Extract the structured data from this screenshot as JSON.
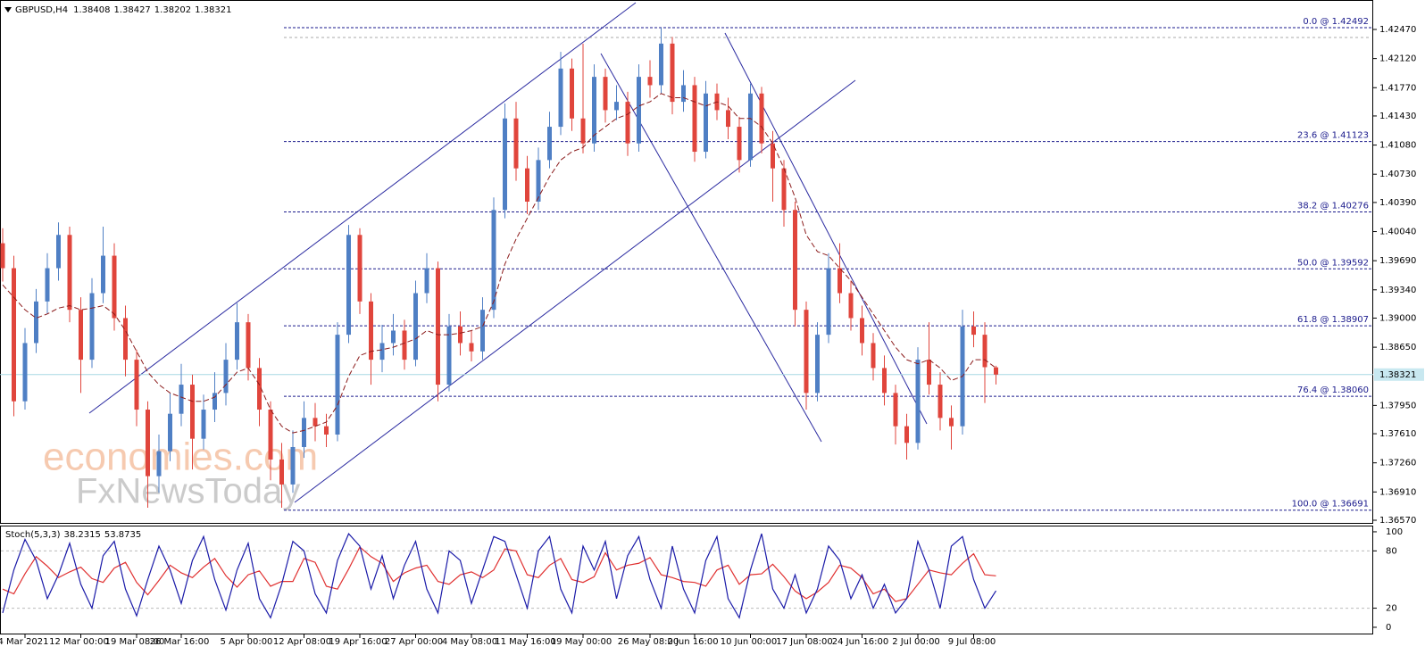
{
  "chart_data": [
    {
      "type": "candlestick",
      "title": "GBPUSD,H4",
      "categories": [
        null,
        null,
        "4 Mar 2021",
        null,
        null,
        null,
        null,
        "12 Mar 00:00",
        null,
        null,
        null,
        null,
        "19 Mar 08:00",
        null,
        null,
        null,
        "26 Mar 16:00",
        null,
        null,
        null,
        null,
        null,
        "5 Apr 00:00",
        null,
        null,
        null,
        null,
        "12 Apr 08:00",
        null,
        null,
        null,
        null,
        "19 Apr 16:00",
        null,
        null,
        null,
        null,
        "27 Apr 00:00",
        null,
        null,
        null,
        null,
        "4 May 08:00",
        null,
        null,
        null,
        null,
        "11 May 16:00",
        null,
        null,
        null,
        null,
        "19 May 00:00",
        null,
        null,
        null,
        null,
        null,
        "26 May 08:00",
        null,
        null,
        null,
        "2 Jun 16:00",
        null,
        null,
        null,
        null,
        "10 Jun 00:00",
        null,
        null,
        null,
        null,
        "17 Jun 08:00",
        null,
        null,
        null,
        null,
        "24 Jun 16:00",
        null,
        null,
        null,
        null,
        "2 Jul 00:00",
        null,
        null,
        null,
        null,
        "9 Jul 08:00",
        null,
        null
      ],
      "open": [
        1.399,
        1.396,
        1.38,
        1.387,
        1.392,
        1.396,
        1.4,
        1.391,
        1.385,
        1.393,
        1.3975,
        1.39,
        1.385,
        1.379,
        1.371,
        1.374,
        1.3785,
        1.382,
        1.3755,
        1.379,
        1.381,
        1.385,
        1.3895,
        1.384,
        1.379,
        1.373,
        1.37,
        1.3745,
        1.378,
        1.377,
        1.376,
        1.388,
        1.4,
        1.392,
        1.385,
        1.387,
        1.3885,
        1.385,
        1.393,
        1.396,
        1.382,
        1.389,
        1.387,
        1.386,
        1.391,
        1.403,
        1.414,
        1.408,
        1.404,
        1.409,
        1.413,
        1.42,
        1.414,
        1.411,
        1.419,
        1.415,
        1.416,
        1.411,
        1.419,
        1.418,
        1.423,
        1.416,
        1.418,
        1.41,
        1.417,
        1.415,
        1.413,
        1.409,
        1.417,
        1.411,
        1.408,
        1.403,
        1.391,
        1.381,
        1.388,
        1.396,
        1.393,
        1.39,
        1.387,
        1.384,
        1.381,
        1.377,
        1.375,
        1.385,
        1.382,
        1.378,
        1.377,
        1.389,
        1.388,
        1.38408
      ],
      "high": [
        1.4008,
        1.3975,
        1.3888,
        1.3935,
        1.3978,
        1.4015,
        1.401,
        1.3925,
        1.3948,
        1.401,
        1.399,
        1.3915,
        1.3862,
        1.38,
        1.376,
        1.381,
        1.3845,
        1.3832,
        1.3808,
        1.3835,
        1.387,
        1.3918,
        1.3905,
        1.3852,
        1.38,
        1.375,
        1.3765,
        1.38,
        1.3798,
        1.3785,
        1.3895,
        1.4012,
        1.4008,
        1.393,
        1.3892,
        1.3905,
        1.3898,
        1.3945,
        1.3978,
        1.3968,
        1.3905,
        1.3908,
        1.3885,
        1.3925,
        1.4045,
        1.4158,
        1.416,
        1.4095,
        1.4105,
        1.4148,
        1.422,
        1.4212,
        1.423,
        1.4205,
        1.42,
        1.418,
        1.4172,
        1.4205,
        1.421,
        1.4249,
        1.4238,
        1.4198,
        1.419,
        1.4185,
        1.4182,
        1.4165,
        1.4142,
        1.4182,
        1.4178,
        1.4125,
        1.409,
        1.404,
        1.392,
        1.3895,
        1.3978,
        1.399,
        1.3945,
        1.3915,
        1.3882,
        1.3855,
        1.382,
        1.3785,
        1.3865,
        1.3895,
        1.3835,
        1.3795,
        1.391,
        1.3908,
        1.3895,
        1.38427
      ],
      "low": [
        1.3944,
        1.3782,
        1.379,
        1.3858,
        1.3905,
        1.3945,
        1.3895,
        1.381,
        1.384,
        1.3918,
        1.3885,
        1.383,
        1.377,
        1.3672,
        1.369,
        1.3728,
        1.377,
        1.3718,
        1.3742,
        1.3775,
        1.3795,
        1.3838,
        1.3825,
        1.377,
        1.3705,
        1.3672,
        1.369,
        1.3732,
        1.3752,
        1.3745,
        1.3752,
        1.387,
        1.3905,
        1.382,
        1.3835,
        1.3855,
        1.3838,
        1.3842,
        1.3918,
        1.38,
        1.3812,
        1.3855,
        1.3848,
        1.385,
        1.39,
        1.402,
        1.4065,
        1.4025,
        1.403,
        1.408,
        1.412,
        1.4125,
        1.4098,
        1.41,
        1.4135,
        1.4138,
        1.4095,
        1.41,
        1.4165,
        1.417,
        1.4145,
        1.4148,
        1.4088,
        1.4092,
        1.4138,
        1.4115,
        1.4075,
        1.4082,
        1.4098,
        1.404,
        1.401,
        1.389,
        1.379,
        1.38,
        1.387,
        1.3918,
        1.3885,
        1.3855,
        1.3825,
        1.3795,
        1.3748,
        1.373,
        1.3742,
        1.3808,
        1.3765,
        1.3742,
        1.376,
        1.3865,
        1.3798,
        1.38202
      ],
      "close": [
        1.396,
        1.38,
        1.387,
        1.392,
        1.396,
        1.4,
        1.391,
        1.385,
        1.393,
        1.3975,
        1.39,
        1.385,
        1.379,
        1.371,
        1.374,
        1.3785,
        1.382,
        1.3755,
        1.379,
        1.381,
        1.385,
        1.3895,
        1.384,
        1.379,
        1.373,
        1.37,
        1.3745,
        1.378,
        1.377,
        1.376,
        1.388,
        1.4,
        1.392,
        1.385,
        1.387,
        1.3885,
        1.385,
        1.393,
        1.396,
        1.382,
        1.389,
        1.387,
        1.386,
        1.391,
        1.403,
        1.414,
        1.408,
        1.404,
        1.409,
        1.413,
        1.42,
        1.414,
        1.411,
        1.419,
        1.415,
        1.416,
        1.411,
        1.419,
        1.418,
        1.423,
        1.416,
        1.418,
        1.41,
        1.417,
        1.415,
        1.413,
        1.409,
        1.417,
        1.411,
        1.408,
        1.403,
        1.391,
        1.381,
        1.388,
        1.396,
        1.393,
        1.39,
        1.387,
        1.384,
        1.381,
        1.377,
        1.375,
        1.385,
        1.382,
        1.378,
        1.377,
        1.389,
        1.388,
        1.3841,
        1.38321
      ],
      "up_color": "#4f7fc4",
      "down_color": "#e0453c",
      "ma": {
        "color": "#8b1a1a",
        "values": [
          1.394,
          1.3925,
          1.391,
          1.39,
          1.3905,
          1.3912,
          1.3915,
          1.391,
          1.3912,
          1.3915,
          1.3905,
          1.3885,
          1.386,
          1.3835,
          1.382,
          1.381,
          1.3805,
          1.38,
          1.38,
          1.3805,
          1.382,
          1.3835,
          1.384,
          1.382,
          1.379,
          1.377,
          1.3762,
          1.3765,
          1.377,
          1.3775,
          1.3795,
          1.383,
          1.3855,
          1.386,
          1.3862,
          1.3865,
          1.387,
          1.3875,
          1.3885,
          1.388,
          1.388,
          1.3882,
          1.3885,
          1.389,
          1.392,
          1.3965,
          1.3995,
          1.402,
          1.4045,
          1.407,
          1.409,
          1.41,
          1.4105,
          1.412,
          1.413,
          1.414,
          1.4145,
          1.4155,
          1.416,
          1.417,
          1.4165,
          1.4165,
          1.416,
          1.4155,
          1.416,
          1.4155,
          1.414,
          1.414,
          1.413,
          1.411,
          1.408,
          1.4045,
          1.4,
          1.398,
          1.3975,
          1.396,
          1.3945,
          1.3925,
          1.3905,
          1.3885,
          1.3865,
          1.385,
          1.3845,
          1.385,
          1.384,
          1.3825,
          1.383,
          1.385,
          1.385,
          1.384
        ]
      },
      "ylim": [
        1.36538,
        1.42824
      ],
      "yticks": [
        {
          "value": 1.4247,
          "label": "1.42470"
        },
        {
          "value": 1.4212,
          "label": "1.42120"
        },
        {
          "value": 1.4177,
          "label": "1.41770"
        },
        {
          "value": 1.4143,
          "label": "1.41430"
        },
        {
          "value": 1.4108,
          "label": "1.41080"
        },
        {
          "value": 1.4073,
          "label": "1.40730"
        },
        {
          "value": 1.4039,
          "label": "1.40390"
        },
        {
          "value": 1.4004,
          "label": "1.40040"
        },
        {
          "value": 1.3969,
          "label": "1.39690"
        },
        {
          "value": 1.3934,
          "label": "1.39340"
        },
        {
          "value": 1.39,
          "label": "1.39000"
        },
        {
          "value": 1.3865,
          "label": "1.38650"
        },
        {
          "value": 1.3795,
          "label": "1.37950"
        },
        {
          "value": 1.3761,
          "label": "1.37610"
        },
        {
          "value": 1.3726,
          "label": "1.37260"
        },
        {
          "value": 1.3691,
          "label": "1.36910"
        },
        {
          "value": 1.3657,
          "label": "1.36570"
        }
      ],
      "fib": [
        {
          "label": "0.0 @ 1.42492",
          "value": 1.42492
        },
        {
          "label": "23.6 @ 1.41123",
          "value": 1.41123
        },
        {
          "label": "38.2 @ 1.40276",
          "value": 1.40276
        },
        {
          "label": "50.0 @ 1.39592",
          "value": 1.39592
        },
        {
          "label": "61.8 @ 1.38907",
          "value": 1.38907
        },
        {
          "label": "76.4 @ 1.38060",
          "value": 1.3806
        },
        {
          "label": "100.0 @ 1.36691",
          "value": 1.36691
        }
      ],
      "fib_color": "#1a1a8c",
      "watermark": [
        "economies.com",
        "FxNewsToday"
      ]
    },
    {
      "type": "line",
      "title": "Stoch(5,3,3)",
      "series": [
        {
          "color": "#1a1aa8",
          "values": [
            15,
            60,
            92,
            70,
            30,
            55,
            88,
            45,
            20,
            75,
            90,
            40,
            12,
            50,
            85,
            60,
            25,
            70,
            95,
            50,
            18,
            60,
            88,
            30,
            10,
            45,
            90,
            80,
            35,
            15,
            70,
            98,
            85,
            40,
            75,
            30,
            65,
            90,
            40,
            15,
            80,
            70,
            25,
            60,
            95,
            90,
            55,
            20,
            80,
            95,
            40,
            15,
            85,
            60,
            90,
            30,
            75,
            95,
            50,
            20,
            85,
            40,
            15,
            70,
            95,
            30,
            10,
            60,
            98,
            40,
            20,
            55,
            15,
            40,
            85,
            70,
            30,
            55,
            20,
            45,
            15,
            30,
            90,
            60,
            20,
            85,
            95,
            50,
            20,
            38.2315
          ]
        },
        {
          "color": "#e03030",
          "values": [
            40,
            35,
            56,
            74,
            64,
            52,
            58,
            63,
            51,
            47,
            62,
            68,
            47,
            34,
            49,
            65,
            57,
            52,
            63,
            72,
            54,
            42,
            55,
            59,
            43,
            48,
            48,
            72,
            68,
            43,
            40,
            61,
            84,
            74,
            67,
            48,
            57,
            62,
            65,
            48,
            45,
            55,
            58,
            52,
            60,
            82,
            80,
            55,
            52,
            65,
            72,
            50,
            47,
            53,
            78,
            60,
            65,
            67,
            73,
            55,
            52,
            48,
            47,
            43,
            60,
            65,
            45,
            55,
            56,
            66,
            53,
            38,
            30,
            37,
            47,
            65,
            62,
            52,
            35,
            40,
            27,
            30,
            45,
            60,
            57,
            55,
            67,
            77,
            55,
            53.8735
          ]
        }
      ],
      "ylim": [
        -7.5,
        106.5
      ],
      "yticks": [
        0,
        20,
        80,
        100
      ]
    }
  ]
}
